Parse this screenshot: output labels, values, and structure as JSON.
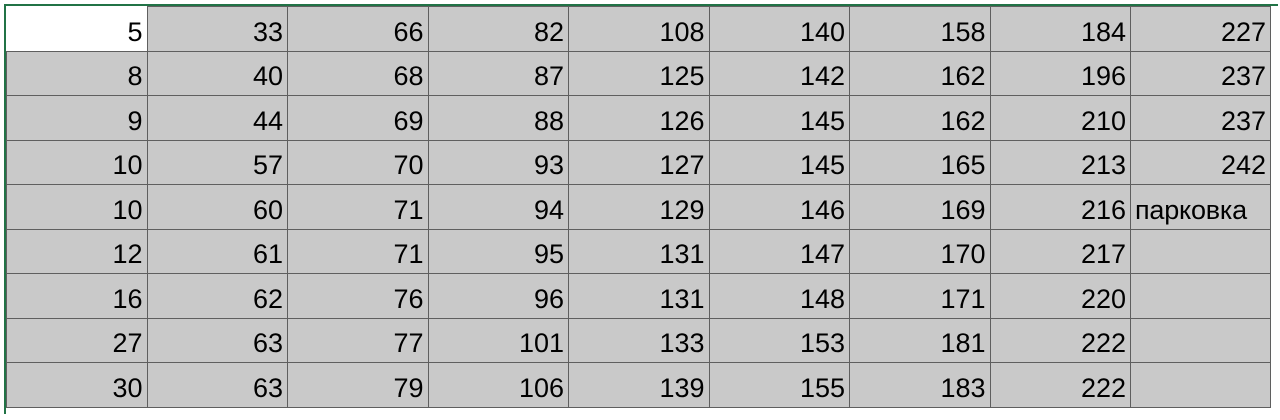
{
  "sheet": {
    "rows": [
      [
        "5",
        "33",
        "66",
        "82",
        "108",
        "140",
        "158",
        "184",
        "227"
      ],
      [
        "8",
        "40",
        "68",
        "87",
        "125",
        "142",
        "162",
        "196",
        "237"
      ],
      [
        "9",
        "44",
        "69",
        "88",
        "126",
        "145",
        "162",
        "210",
        "237"
      ],
      [
        "10",
        "57",
        "70",
        "93",
        "127",
        "145",
        "165",
        "213",
        "242"
      ],
      [
        "10",
        "60",
        "71",
        "94",
        "129",
        "146",
        "169",
        "216",
        "парковка"
      ],
      [
        "12",
        "61",
        "71",
        "95",
        "131",
        "147",
        "170",
        "217",
        ""
      ],
      [
        "16",
        "62",
        "76",
        "96",
        "131",
        "148",
        "171",
        "220",
        ""
      ],
      [
        "27",
        "63",
        "77",
        "101",
        "133",
        "153",
        "181",
        "222",
        ""
      ],
      [
        "30",
        "63",
        "79",
        "106",
        "139",
        "155",
        "183",
        "222",
        ""
      ]
    ]
  },
  "colors": {
    "cell_fill": "#c9c9c9",
    "active_cell_fill": "#ffffff",
    "grid_line": "#5f5f5f",
    "selection_accent": "#217346"
  }
}
